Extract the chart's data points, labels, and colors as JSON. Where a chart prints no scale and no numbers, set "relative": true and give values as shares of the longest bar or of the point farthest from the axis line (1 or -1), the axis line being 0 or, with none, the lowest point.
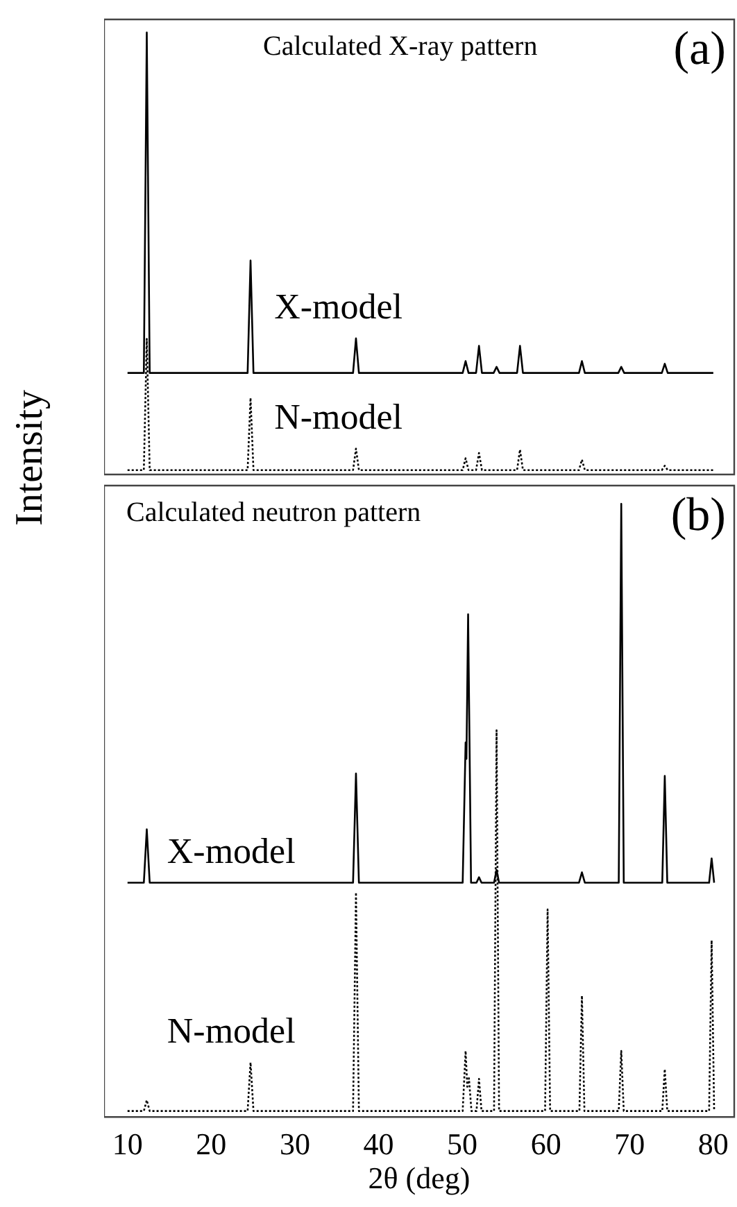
{
  "chart_data": [
    {
      "type": "line",
      "title": "Calculated X-ray pattern",
      "ylabel": "Intensity",
      "annotations": [
        "(a)"
      ],
      "relative": true,
      "xlim": [
        7.2,
        82.5
      ],
      "xticks": [
        10,
        20,
        30,
        40,
        50,
        60,
        70,
        80
      ],
      "tick_labels": false,
      "grid": false,
      "legend": false,
      "marker": "none",
      "series": [
        {
          "name": "X-model",
          "color": "#000000",
          "line_style": "solid",
          "x": [
            10,
            11.95,
            12.3,
            12.65,
            24.35,
            24.7,
            25.05,
            36.95,
            37.3,
            37.65,
            50.05,
            50.4,
            50.75,
            51.65,
            52.0,
            52.35,
            53.75,
            54.1,
            54.45,
            56.55,
            56.9,
            57.25,
            63.95,
            64.3,
            64.65,
            68.65,
            69.0,
            69.35,
            73.85,
            74.2,
            74.55,
            80
          ],
          "values": [
            0.222,
            0.222,
            1.0,
            0.222,
            0.222,
            0.479,
            0.222,
            0.222,
            0.301,
            0.222,
            0.222,
            0.249,
            0.222,
            0.222,
            0.284,
            0.222,
            0.222,
            0.236,
            0.222,
            0.222,
            0.284,
            0.222,
            0.222,
            0.249,
            0.222,
            0.222,
            0.236,
            0.222,
            0.222,
            0.243,
            0.222,
            0.222
          ]
        },
        {
          "name": "N-model",
          "color": "#000000",
          "line_style": "dotted",
          "x": [
            10,
            11.95,
            12.3,
            12.65,
            24.35,
            24.7,
            25.05,
            36.95,
            37.3,
            37.65,
            50.05,
            50.4,
            50.75,
            51.65,
            52.0,
            52.35,
            56.55,
            56.9,
            57.25,
            63.95,
            64.3,
            64.65,
            73.85,
            74.2,
            74.55,
            80
          ],
          "values": [
            0,
            0,
            0.3,
            0,
            0,
            0.165,
            0,
            0,
            0.049,
            0,
            0,
            0.027,
            0,
            0,
            0.039,
            0,
            0,
            0.047,
            0,
            0,
            0.024,
            0,
            0,
            0.01,
            0,
            0
          ]
        }
      ]
    },
    {
      "type": "line",
      "title": "Calculated neutron pattern",
      "xlabel": "2θ (deg)",
      "annotations": [
        "(b)"
      ],
      "relative": true,
      "xlim": [
        7.2,
        82.5
      ],
      "xticks": [
        10,
        20,
        30,
        40,
        50,
        60,
        70,
        80
      ],
      "tick_labels": "x",
      "grid": false,
      "legend": false,
      "marker": "none",
      "series": [
        {
          "name": "X-model",
          "color": "#000000",
          "line_style": "solid",
          "x": [
            10,
            11.95,
            12.3,
            12.65,
            36.95,
            37.3,
            37.65,
            50.05,
            50.4,
            50.5,
            50.7,
            51.05,
            51.7,
            52.0,
            52.3,
            53.8,
            54.1,
            54.4,
            63.95,
            64.3,
            64.65,
            68.7,
            69.0,
            69.3,
            73.9,
            74.2,
            74.5,
            79.5,
            79.8,
            80.1
          ],
          "values": [
            0.376,
            0.376,
            0.464,
            0.376,
            0.376,
            0.556,
            0.376,
            0.376,
            0.607,
            0.58,
            0.818,
            0.376,
            0.376,
            0.385,
            0.376,
            0.376,
            0.397,
            0.376,
            0.376,
            0.393,
            0.376,
            0.376,
            1.0,
            0.376,
            0.376,
            0.552,
            0.376,
            0.376,
            0.416,
            0.376
          ]
        },
        {
          "name": "N-model",
          "color": "#000000",
          "line_style": "dotted",
          "x": [
            10,
            11.95,
            12.3,
            12.65,
            24.35,
            24.7,
            25.05,
            36.95,
            37.3,
            37.65,
            50.05,
            50.4,
            50.6,
            50.8,
            51.1,
            51.7,
            52.0,
            52.3,
            53.8,
            54.1,
            54.4,
            59.9,
            60.2,
            60.5,
            64.0,
            64.3,
            64.6,
            68.7,
            69.0,
            69.3,
            73.9,
            74.2,
            74.5,
            79.5,
            79.8,
            80.1
          ],
          "values": [
            0,
            0,
            0.018,
            0,
            0,
            0.08,
            0,
            0,
            0.36,
            0,
            0,
            0.099,
            0.04,
            0.054,
            0,
            0,
            0.053,
            0,
            0,
            0.627,
            0,
            0,
            0.332,
            0,
            0,
            0.19,
            0,
            0,
            0.099,
            0,
            0,
            0.069,
            0,
            0,
            0.281,
            0
          ]
        }
      ]
    }
  ]
}
